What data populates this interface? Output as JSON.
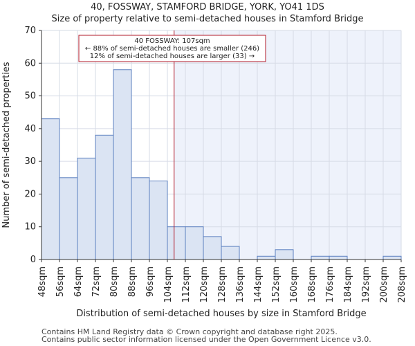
{
  "title_line1": "40, FOSSWAY, STAMFORD BRIDGE, YORK, YO41 1DS",
  "title_line2": "Size of property relative to semi-detached houses in Stamford Bridge",
  "footer_line1": "Contains HM Land Registry data © Crown copyright and database right 2025.",
  "footer_line2": "Contains public sector information licensed under the Open Government Licence v3.0.",
  "colors": {
    "bar_fill": "#dbe4f3",
    "bar_stroke": "#5b7fbf",
    "shade": "#eef2fb",
    "marker": "#b11a2a"
  },
  "chart_data": {
    "type": "bar",
    "title": "40, FOSSWAY, STAMFORD BRIDGE, YORK, YO41 1DS",
    "subtitle": "Size of property relative to semi-detached houses in Stamford Bridge",
    "xlabel": "Distribution of semi-detached houses by size in Stamford Bridge",
    "ylabel": "Number of semi-detached properties",
    "bin_edges": [
      48,
      56,
      64,
      72,
      80,
      88,
      96,
      104,
      112,
      120,
      128,
      136,
      144,
      152,
      160,
      168,
      176,
      184,
      192,
      200,
      208
    ],
    "tick_labels": [
      "48sqm",
      "56sqm",
      "64sqm",
      "72sqm",
      "80sqm",
      "88sqm",
      "96sqm",
      "104sqm",
      "112sqm",
      "120sqm",
      "128sqm",
      "136sqm",
      "144sqm",
      "152sqm",
      "160sqm",
      "168sqm",
      "176sqm",
      "184sqm",
      "192sqm",
      "200sqm",
      "208sqm"
    ],
    "values": [
      43,
      25,
      31,
      38,
      58,
      25,
      24,
      10,
      10,
      7,
      4,
      0,
      1,
      3,
      0,
      1,
      1,
      0,
      0,
      1
    ],
    "ylim": [
      0,
      70
    ],
    "yticks": [
      0,
      10,
      20,
      30,
      40,
      50,
      60,
      70
    ],
    "marker_value": 107,
    "annotation": {
      "line1": "40 FOSSWAY: 107sqm",
      "line2": "← 88% of semi-detached houses are smaller (246)",
      "line3": "12% of semi-detached houses are larger (33) →"
    }
  }
}
